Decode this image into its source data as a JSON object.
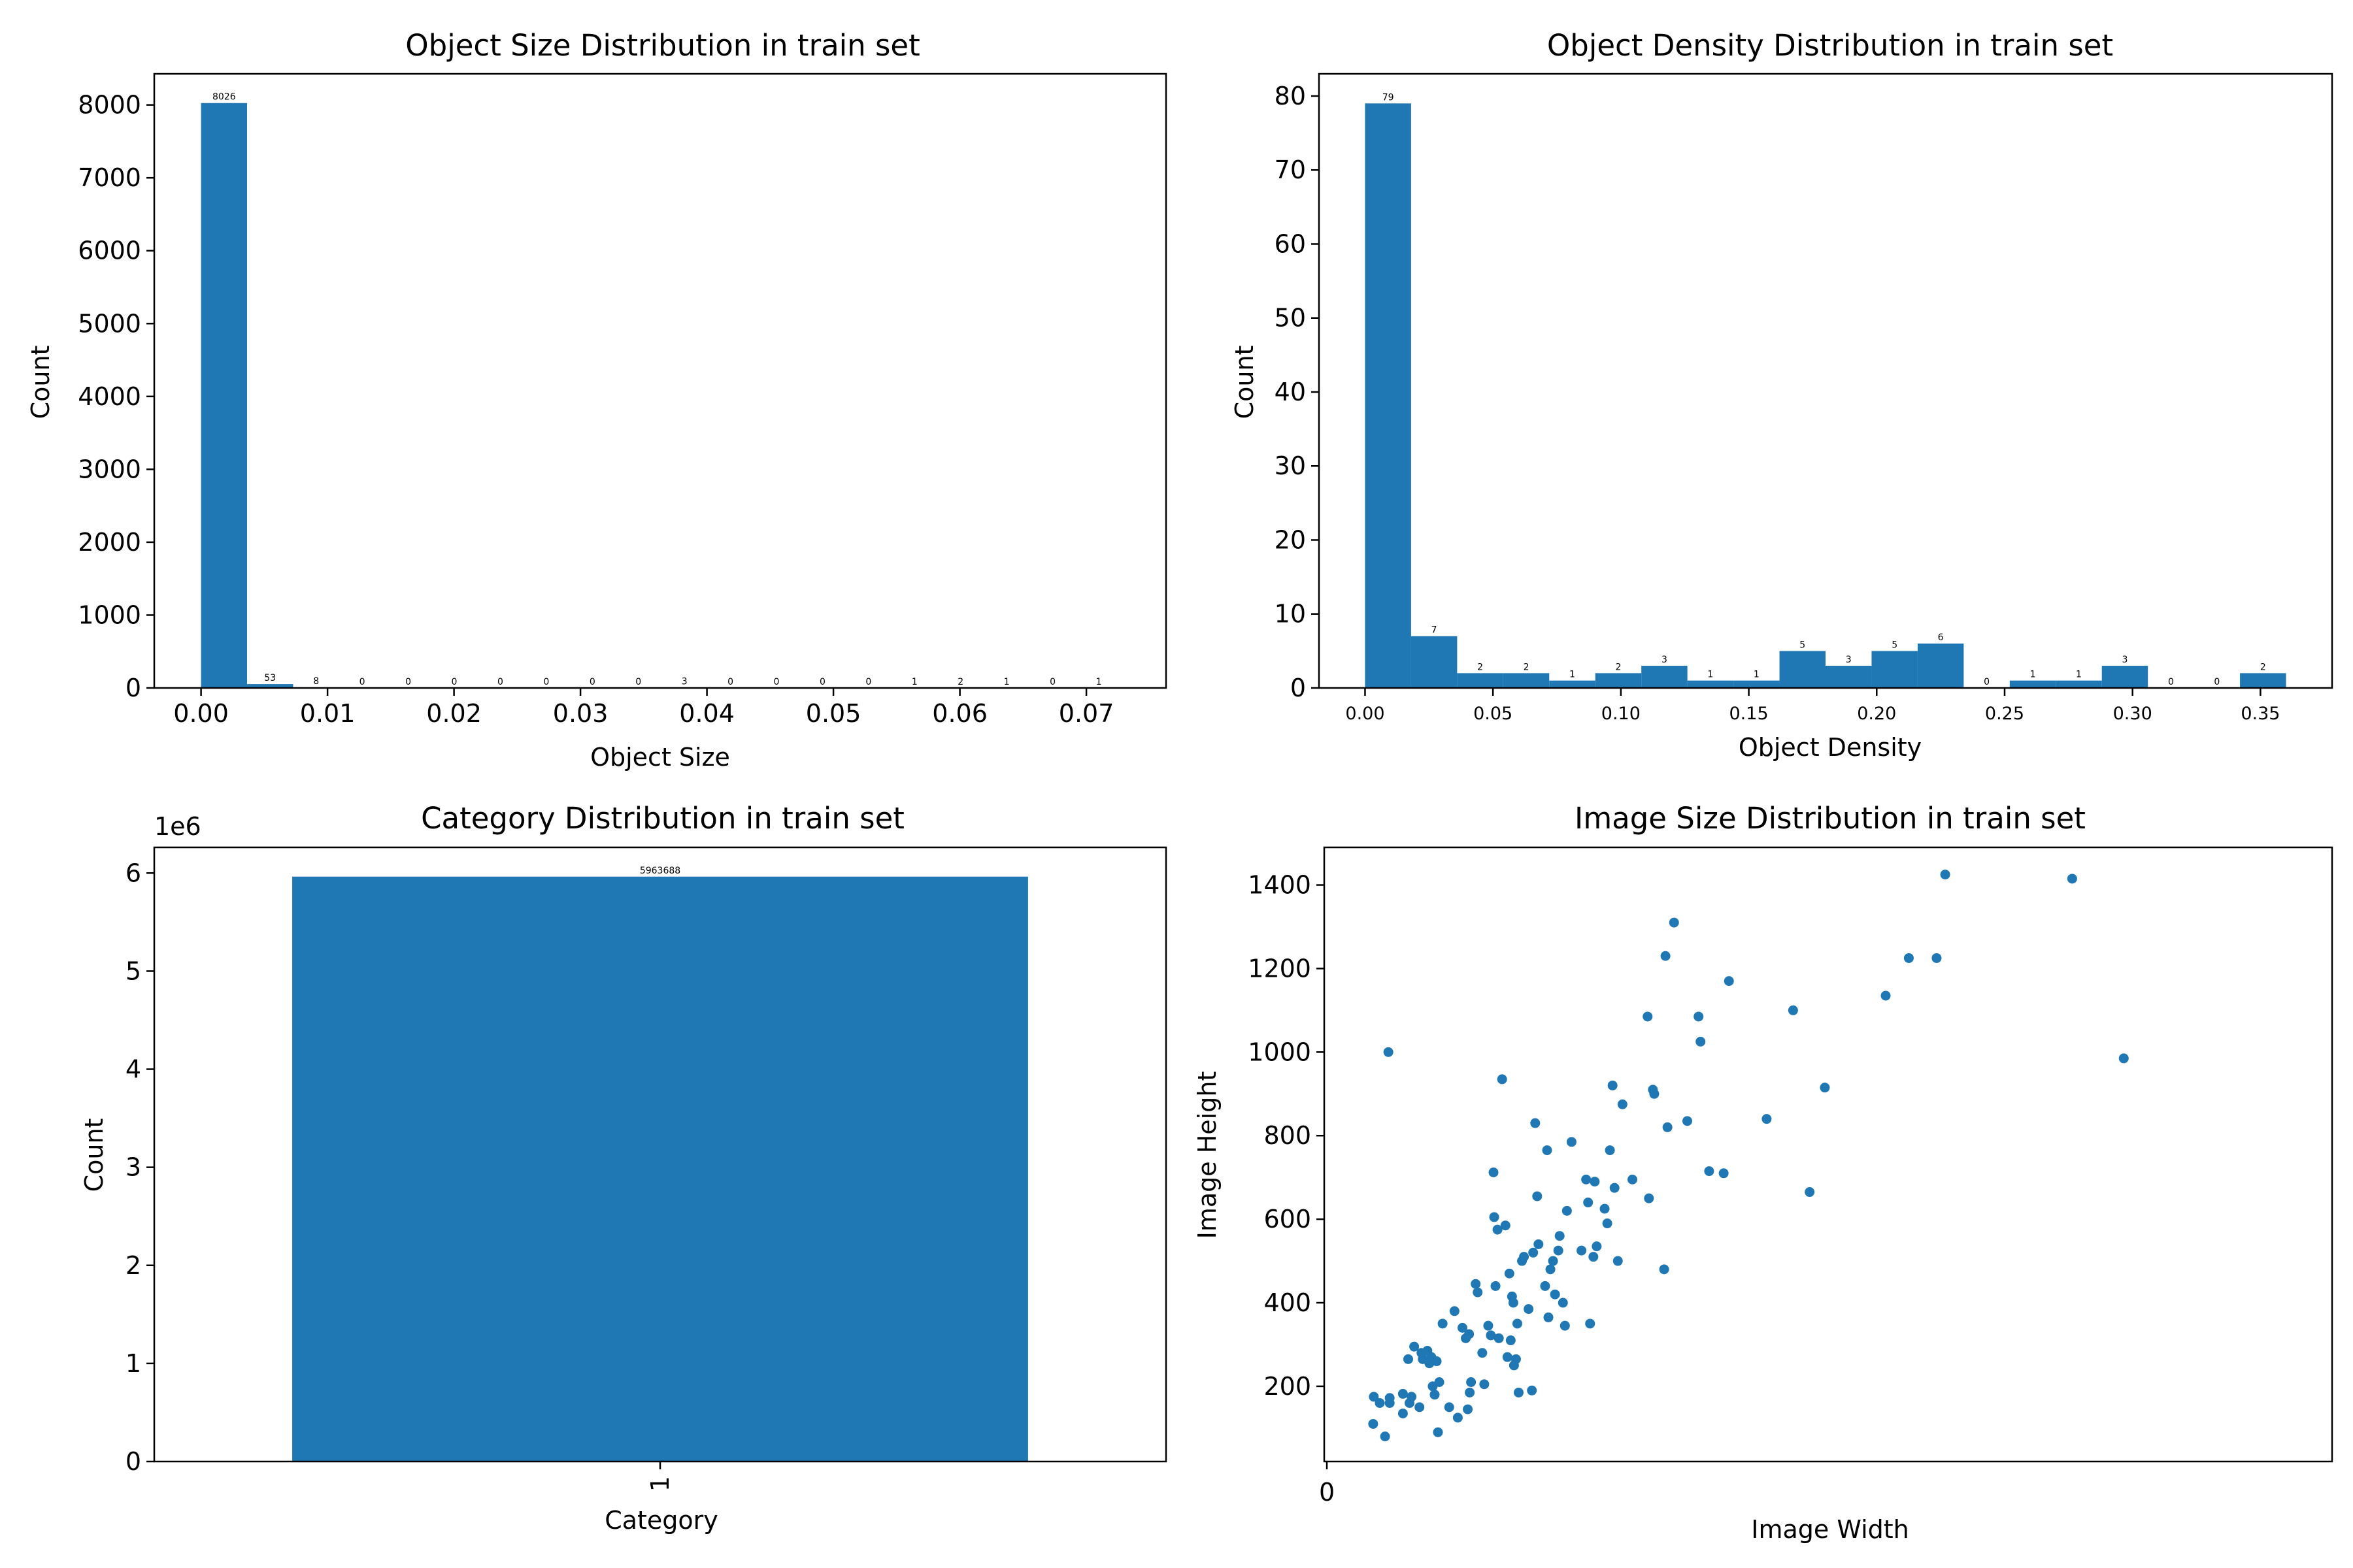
{
  "colors": {
    "bar": "#1f77b4",
    "point": "#1f77b4"
  },
  "chart_data": [
    {
      "id": "size",
      "type": "bar",
      "title": "Object Size Distribution in train set",
      "xlabel": "Object Size",
      "ylabel": "Count",
      "xlim": [
        -0.0037,
        0.0763
      ],
      "ylim": [
        0,
        8427
      ],
      "xticks": [
        0.0,
        0.01,
        0.02,
        0.03,
        0.04,
        0.05,
        0.06,
        0.07
      ],
      "xtick_labels": [
        "0.00",
        "0.01",
        "0.02",
        "0.03",
        "0.04",
        "0.05",
        "0.06",
        "0.07"
      ],
      "yticks": [
        0,
        1000,
        2000,
        3000,
        4000,
        5000,
        6000,
        7000,
        8000
      ],
      "ytick_labels": [
        "0",
        "1000",
        "2000",
        "3000",
        "4000",
        "5000",
        "6000",
        "7000",
        "8000"
      ],
      "bin_start": 0.0,
      "bin_width": 0.00364,
      "values": [
        8026,
        53,
        8,
        0,
        0,
        0,
        0,
        0,
        0,
        0,
        3,
        0,
        0,
        0,
        0,
        1,
        2,
        1,
        0,
        1
      ],
      "value_labels": [
        "8026",
        "53",
        "8",
        "0",
        "0",
        "0",
        "0",
        "0",
        "0",
        "0",
        "3",
        "0",
        "0",
        "0",
        "0",
        "1",
        "2",
        "1",
        "0",
        "1"
      ]
    },
    {
      "id": "density",
      "type": "bar",
      "title": "Object Density Distribution in train set",
      "xlabel": "Object Density",
      "ylabel": "Count",
      "xlim": [
        -0.018,
        0.378
      ],
      "ylim": [
        0,
        83
      ],
      "xticks": [
        0.0,
        0.05,
        0.1,
        0.15,
        0.2,
        0.25,
        0.3,
        0.35
      ],
      "xtick_labels": [
        "0.00",
        "0.05",
        "0.10",
        "0.15",
        "0.20",
        "0.25",
        "0.30",
        "0.35"
      ],
      "yticks": [
        0,
        10,
        20,
        30,
        40,
        50,
        60,
        70,
        80
      ],
      "ytick_labels": [
        "0",
        "10",
        "20",
        "30",
        "40",
        "50",
        "60",
        "70",
        "80"
      ],
      "bin_start": 0.0,
      "bin_width": 0.018,
      "values": [
        79,
        7,
        2,
        2,
        1,
        2,
        3,
        1,
        1,
        5,
        3,
        5,
        6,
        0,
        1,
        1,
        3,
        0,
        0,
        2
      ],
      "value_labels": [
        "79",
        "7",
        "2",
        "2",
        "1",
        "2",
        "3",
        "1",
        "1",
        "5",
        "3",
        "5",
        "6",
        "0",
        "1",
        "1",
        "3",
        "0",
        "0",
        "2"
      ]
    },
    {
      "id": "category",
      "type": "bar",
      "title": "Category Distribution in train set",
      "xlabel": "Category",
      "ylabel": "Count",
      "y_offset_label": "1e6",
      "categories": [
        "1"
      ],
      "values": [
        5963688
      ],
      "value_labels": [
        "5963688"
      ],
      "xlim": [
        -0.55,
        0.55
      ],
      "ylim": [
        0,
        6261872
      ],
      "yticks": [
        0,
        1000000,
        2000000,
        3000000,
        4000000,
        5000000,
        6000000
      ],
      "ytick_labels": [
        "0",
        "1",
        "2",
        "3",
        "4",
        "5",
        "6"
      ]
    },
    {
      "id": "imagesize",
      "type": "scatter",
      "title": "Image Size Distribution in train set",
      "xlabel": "Image Width",
      "ylabel": "Image Height",
      "xlim": [
        -4,
        1520
      ],
      "ylim": [
        20,
        1490
      ],
      "xticks": [
        0
      ],
      "xtick_labels": [
        "0"
      ],
      "yticks": [
        200,
        400,
        600,
        800,
        1000,
        1200,
        1400
      ],
      "ytick_labels": [
        "200",
        "400",
        "600",
        "800",
        "1000",
        "1200",
        "1400"
      ],
      "points": [
        [
          70,
          110
        ],
        [
          71,
          175
        ],
        [
          80,
          160
        ],
        [
          88,
          80
        ],
        [
          95,
          172
        ],
        [
          95,
          160
        ],
        [
          93,
          1000
        ],
        [
          115,
          135
        ],
        [
          115,
          182
        ],
        [
          125,
          160
        ],
        [
          123,
          265
        ],
        [
          128,
          175
        ],
        [
          132,
          295
        ],
        [
          140,
          150
        ],
        [
          145,
          265
        ],
        [
          143,
          280
        ],
        [
          152,
          285
        ],
        [
          155,
          255
        ],
        [
          158,
          270
        ],
        [
          160,
          200
        ],
        [
          163,
          180
        ],
        [
          166,
          260
        ],
        [
          170,
          210
        ],
        [
          168,
          90
        ],
        [
          175,
          350
        ],
        [
          185,
          150
        ],
        [
          193,
          380
        ],
        [
          198,
          125
        ],
        [
          205,
          340
        ],
        [
          210,
          315
        ],
        [
          213,
          145
        ],
        [
          215,
          325
        ],
        [
          216,
          185
        ],
        [
          218,
          210
        ],
        [
          225,
          445
        ],
        [
          228,
          425
        ],
        [
          235,
          280
        ],
        [
          238,
          205
        ],
        [
          244,
          345
        ],
        [
          248,
          322
        ],
        [
          252,
          712
        ],
        [
          253,
          605
        ],
        [
          255,
          440
        ],
        [
          258,
          575
        ],
        [
          260,
          315
        ],
        [
          265,
          935
        ],
        [
          270,
          585
        ],
        [
          273,
          270
        ],
        [
          276,
          470
        ],
        [
          278,
          310
        ],
        [
          280,
          415
        ],
        [
          282,
          400
        ],
        [
          283,
          250
        ],
        [
          286,
          265
        ],
        [
          288,
          350
        ],
        [
          290,
          185
        ],
        [
          295,
          500
        ],
        [
          298,
          510
        ],
        [
          305,
          385
        ],
        [
          310,
          190
        ],
        [
          312,
          520
        ],
        [
          315,
          830
        ],
        [
          318,
          655
        ],
        [
          320,
          540
        ],
        [
          330,
          440
        ],
        [
          333,
          765
        ],
        [
          335,
          365
        ],
        [
          338,
          480
        ],
        [
          342,
          500
        ],
        [
          345,
          420
        ],
        [
          350,
          525
        ],
        [
          352,
          560
        ],
        [
          357,
          400
        ],
        [
          360,
          345
        ],
        [
          363,
          620
        ],
        [
          370,
          785
        ],
        [
          385,
          525
        ],
        [
          392,
          695
        ],
        [
          395,
          640
        ],
        [
          398,
          350
        ],
        [
          403,
          510
        ],
        [
          405,
          690
        ],
        [
          408,
          535
        ],
        [
          420,
          625
        ],
        [
          424,
          590
        ],
        [
          428,
          765
        ],
        [
          432,
          920
        ],
        [
          435,
          675
        ],
        [
          440,
          500
        ],
        [
          447,
          875
        ],
        [
          462,
          695
        ],
        [
          485,
          1085
        ],
        [
          487,
          650
        ],
        [
          493,
          910
        ],
        [
          495,
          900
        ],
        [
          510,
          480
        ],
        [
          512,
          1230
        ],
        [
          515,
          820
        ],
        [
          525,
          1310
        ],
        [
          545,
          835
        ],
        [
          562,
          1085
        ],
        [
          565,
          1025
        ],
        [
          578,
          715
        ],
        [
          600,
          710
        ],
        [
          608,
          1170
        ],
        [
          665,
          840
        ],
        [
          705,
          1100
        ],
        [
          730,
          665
        ],
        [
          753,
          915
        ],
        [
          845,
          1135
        ],
        [
          880,
          1225
        ],
        [
          922,
          1225
        ],
        [
          935,
          1425
        ],
        [
          1127,
          1415
        ],
        [
          1205,
          985
        ]
      ]
    }
  ]
}
